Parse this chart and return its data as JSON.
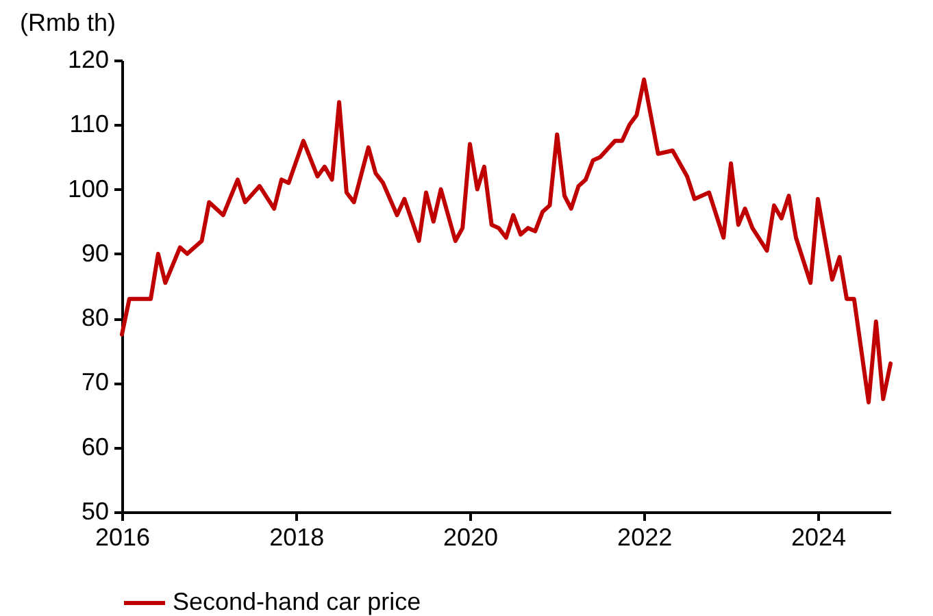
{
  "chart_data": {
    "type": "line",
    "ylabel": "(Rmb th)",
    "x": [
      "2016-01",
      "2016-02",
      "2016-05",
      "2016-06",
      "2016-07",
      "2016-09",
      "2016-10",
      "2016-12",
      "2017-01",
      "2017-03",
      "2017-05",
      "2017-06",
      "2017-08",
      "2017-10",
      "2017-11",
      "2017-12",
      "2018-02",
      "2018-04",
      "2018-05",
      "2018-06",
      "2018-07",
      "2018-08",
      "2018-09",
      "2018-11",
      "2018-12",
      "2019-01",
      "2019-03",
      "2019-04",
      "2019-06",
      "2019-07",
      "2019-08",
      "2019-09",
      "2019-11",
      "2019-12",
      "2020-01",
      "2020-02",
      "2020-03",
      "2020-04",
      "2020-05",
      "2020-06",
      "2020-07",
      "2020-08",
      "2020-09",
      "2020-10",
      "2020-11",
      "2020-12",
      "2021-01",
      "2021-02",
      "2021-03",
      "2021-04",
      "2021-05",
      "2021-06",
      "2021-07",
      "2021-09",
      "2021-10",
      "2021-11",
      "2021-12",
      "2022-01",
      "2022-03",
      "2022-05",
      "2022-07",
      "2022-08",
      "2022-10",
      "2022-12",
      "2023-01",
      "2023-02",
      "2023-03",
      "2023-04",
      "2023-06",
      "2023-07",
      "2023-08",
      "2023-09",
      "2023-10",
      "2023-12",
      "2024-01",
      "2024-03",
      "2024-04",
      "2024-05",
      "2024-06",
      "2024-08",
      "2024-09",
      "2024-10",
      "2024-11"
    ],
    "series": [
      {
        "name": "Second-hand car price",
        "color": "#c00000",
        "values": [
          77.5,
          83,
          83,
          90,
          85.5,
          91,
          90,
          92,
          98,
          96,
          101.5,
          98,
          100.5,
          97,
          101.5,
          101,
          107.5,
          102,
          103.5,
          101.5,
          113.5,
          99.5,
          98,
          106.5,
          102.5,
          101,
          96,
          98.5,
          92,
          99.5,
          95,
          100,
          92,
          94,
          107,
          100,
          103.5,
          94.5,
          94,
          92.5,
          96,
          93,
          94,
          93.5,
          96.5,
          97.5,
          108.5,
          99,
          97,
          100.5,
          101.5,
          104.5,
          105,
          107.5,
          107.5,
          110,
          111.5,
          117,
          105.5,
          106,
          102,
          98.5,
          99.5,
          92.5,
          104,
          94.5,
          97,
          94,
          90.5,
          97.5,
          95.5,
          99,
          92.5,
          85.5,
          98.5,
          86,
          89.5,
          83,
          83,
          67,
          79.5,
          67.5,
          73
        ]
      }
    ],
    "xlim": [
      "2016-01",
      "2024-11"
    ],
    "xticks": [
      "2016",
      "2018",
      "2020",
      "2022",
      "2024"
    ],
    "ylim": [
      50,
      120
    ],
    "yticks": [
      50,
      60,
      70,
      80,
      90,
      100,
      110,
      120
    ],
    "legend": "bottom",
    "marker": "none",
    "line_style": "solid"
  }
}
